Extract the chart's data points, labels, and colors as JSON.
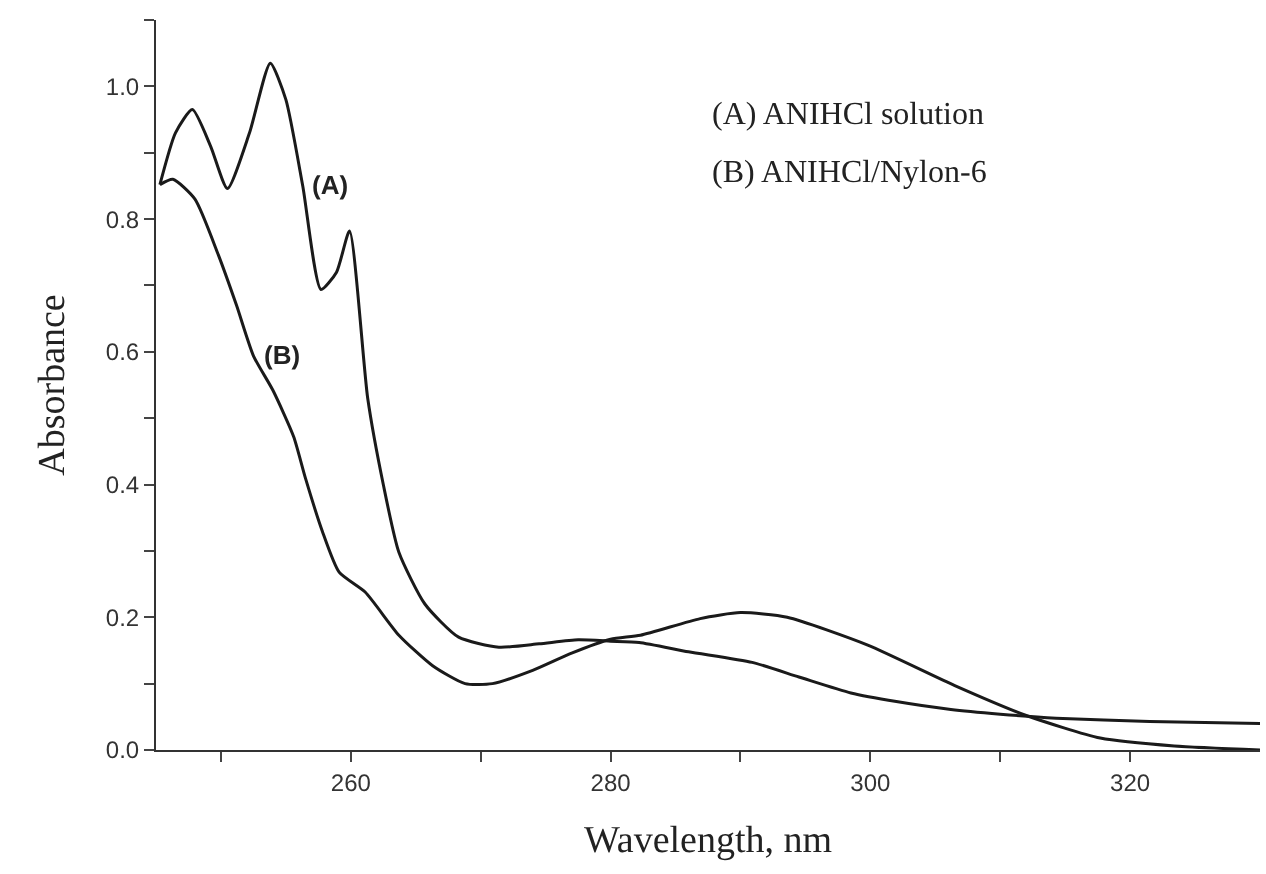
{
  "chart_data": {
    "type": "line",
    "xlabel": "Wavelength, nm",
    "ylabel": "Absorbance",
    "xlim": [
      245,
      330
    ],
    "ylim": [
      0,
      1.1
    ],
    "xticks": [
      {
        "value": 250,
        "label": null
      },
      260,
      {
        "value": 270,
        "label": null
      },
      280,
      {
        "value": 290,
        "label": null
      },
      300,
      {
        "value": 310,
        "label": null
      },
      320
    ],
    "yticks": [
      {
        "value": 0,
        "label": "0.0"
      },
      {
        "value": 0.1,
        "label": null
      },
      0.2,
      {
        "value": 0.3,
        "label": null
      },
      0.4,
      {
        "value": 0.5,
        "label": null
      },
      0.6,
      {
        "value": 0.7,
        "label": null
      },
      0.8,
      {
        "value": 0.9,
        "label": null
      },
      {
        "value": 1.0,
        "label": "1.0"
      },
      {
        "value": 1.1,
        "label": null
      }
    ],
    "marker": "none",
    "line_style": "solid",
    "series": [
      {
        "color": "#1a1a1a",
        "x": [
          245.3,
          246.5,
          247.8,
          249.2,
          250.5,
          252.2,
          253.8,
          255.0,
          256.3,
          257.7,
          258.9,
          259.9,
          261.3,
          262.5,
          263.7,
          265.7,
          268.3,
          271.4,
          274.5,
          277.5,
          280,
          282.2,
          286.0,
          290.9,
          294.5,
          298.5,
          302.0,
          306.2,
          310.0,
          314.3,
          321.5,
          330
        ],
        "values": [
          0.852,
          0.93,
          0.965,
          0.91,
          0.846,
          0.93,
          1.035,
          0.98,
          0.85,
          0.694,
          0.72,
          0.782,
          0.53,
          0.4,
          0.298,
          0.22,
          0.17,
          0.155,
          0.16,
          0.166,
          0.164,
          0.162,
          0.148,
          0.132,
          0.11,
          0.086,
          0.073,
          0.061,
          0.054,
          0.048,
          0.043,
          0.04
        ]
      },
      {
        "color": "#1a1a1a",
        "x": [
          245.3,
          246.3,
          248.0,
          249.8,
          251.2,
          252.5,
          254.0,
          255.6,
          256.5,
          257.8,
          259.1,
          261.1,
          263.7,
          266.3,
          268.8,
          270.9,
          274.0,
          277.0,
          280,
          282.3,
          286.9,
          290.0,
          293.6,
          299.8,
          306.5,
          312.0,
          317.7,
          323.4,
          330
        ],
        "values": [
          0.852,
          0.86,
          0.83,
          0.746,
          0.67,
          0.594,
          0.542,
          0.472,
          0.41,
          0.33,
          0.268,
          0.238,
          0.173,
          0.127,
          0.1,
          0.1,
          0.12,
          0.146,
          0.167,
          0.173,
          0.198,
          0.207,
          0.2,
          0.158,
          0.097,
          0.052,
          0.018,
          0.006,
          0.0
        ]
      }
    ],
    "annotations": [
      {
        "text": "(A)",
        "x": 256.3,
        "y": 0.85
      },
      {
        "text": "(B)",
        "x": 252.5,
        "y": 0.594
      },
      "(A) ANIHCl solution",
      "(B) ANIHCl/Nylon-6"
    ]
  }
}
